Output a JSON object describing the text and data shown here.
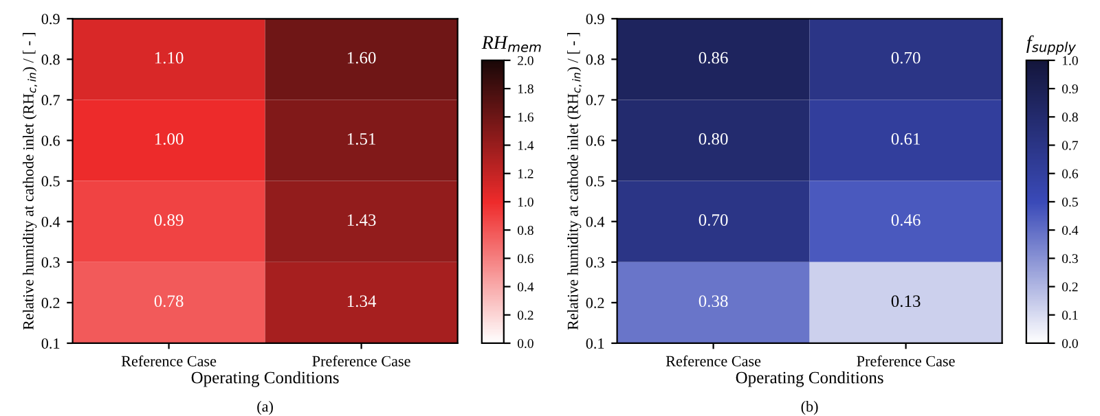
{
  "chart_data": [
    {
      "type": "heatmap",
      "categories": [
        "Reference Case",
        "Preference Case"
      ],
      "cells": [
        [
          1.1,
          1.6
        ],
        [
          1.0,
          1.51
        ],
        [
          0.89,
          1.43
        ],
        [
          0.78,
          1.34
        ]
      ],
      "cell_labels": [
        [
          "1.10",
          "1.60"
        ],
        [
          "1.00",
          "1.51"
        ],
        [
          "0.89",
          "1.43"
        ],
        [
          "0.78",
          "1.34"
        ]
      ],
      "colors": [
        "#ffffff",
        "#ee2b2b",
        "#1a0808"
      ],
      "ylim": [
        0.1,
        0.9
      ],
      "yticks": [
        0.1,
        0.2,
        0.3,
        0.4,
        0.5,
        0.6,
        0.7,
        0.8,
        0.9
      ],
      "clim": [
        0,
        2
      ],
      "cticks": [
        {
          "value": 0,
          "label": "0.0"
        },
        0.2,
        0.4,
        0.6,
        0.8,
        {
          "value": 1,
          "label": "1.0"
        },
        1.2,
        1.4,
        1.6,
        1.8,
        {
          "value": 2,
          "label": "2.0"
        }
      ],
      "clabel": "RH$_{mem}$",
      "xlabel": "Operating Conditions",
      "ylabel": "Relative humidity at cathode inlet (RH$_{c,in}$) / [ - ]",
      "annotations": [
        "(a)"
      ]
    },
    {
      "type": "heatmap",
      "categories": [
        "Reference Case",
        "Preference Case"
      ],
      "cells": [
        [
          0.86,
          0.7
        ],
        [
          0.8,
          0.61
        ],
        [
          0.7,
          0.46
        ],
        [
          0.38,
          0.13
        ]
      ],
      "cell_labels": [
        [
          "0.86",
          "0.70"
        ],
        [
          "0.80",
          "0.61"
        ],
        [
          "0.70",
          "0.46"
        ],
        [
          "0.38",
          "0.13"
        ]
      ],
      "colors": [
        "#ffffff",
        "#3a4ab8",
        "#14163c"
      ],
      "ylim": [
        0.1,
        0.9
      ],
      "yticks": [
        0.1,
        0.2,
        0.3,
        0.4,
        0.5,
        0.6,
        0.7,
        0.8,
        0.9
      ],
      "clim": [
        0,
        1
      ],
      "cticks": [
        {
          "value": 0,
          "label": "0.0"
        },
        0.1,
        0.2,
        0.3,
        0.4,
        0.5,
        0.6,
        0.7,
        0.8,
        0.9,
        {
          "value": 1,
          "label": "1.0"
        }
      ],
      "clabel": "f$_{supply}$",
      "xlabel": "Operating Conditions",
      "ylabel": "Relative humidity at cathode inlet (RH$_{c,in}$) / [ - ]",
      "annotations": [
        "(b)"
      ]
    }
  ]
}
